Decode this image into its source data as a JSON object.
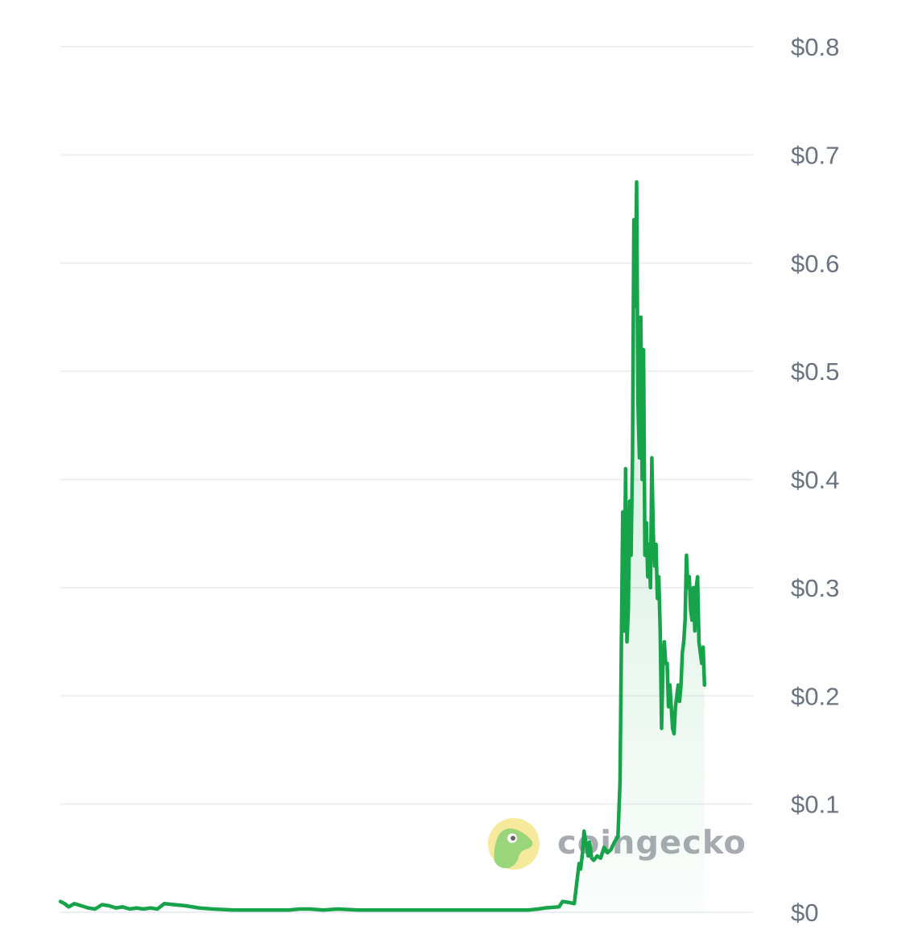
{
  "chart_data": {
    "type": "area",
    "y_tick_labels": [
      "$0",
      "$0.1",
      "$0.2",
      "$0.3",
      "$0.4",
      "$0.5",
      "$0.6",
      "$0.7",
      "$0.8"
    ],
    "y_ticks": [
      0,
      0.1,
      0.2,
      0.3,
      0.4,
      0.5,
      0.6,
      0.7,
      0.8
    ],
    "ylim": [
      0,
      0.8
    ],
    "xlim": [
      0,
      1
    ],
    "y_axis_position": "right",
    "grid": true,
    "line_color": "#16a34a",
    "fill_color": "#16a34a",
    "series": [
      {
        "points": [
          [
            0.0,
            0.01
          ],
          [
            0.006,
            0.008
          ],
          [
            0.012,
            0.005
          ],
          [
            0.02,
            0.008
          ],
          [
            0.03,
            0.006
          ],
          [
            0.04,
            0.004
          ],
          [
            0.05,
            0.003
          ],
          [
            0.06,
            0.007
          ],
          [
            0.07,
            0.006
          ],
          [
            0.08,
            0.004
          ],
          [
            0.09,
            0.005
          ],
          [
            0.1,
            0.003
          ],
          [
            0.11,
            0.004
          ],
          [
            0.12,
            0.003
          ],
          [
            0.13,
            0.004
          ],
          [
            0.14,
            0.003
          ],
          [
            0.15,
            0.008
          ],
          [
            0.165,
            0.007
          ],
          [
            0.18,
            0.006
          ],
          [
            0.2,
            0.004
          ],
          [
            0.22,
            0.003
          ],
          [
            0.25,
            0.002
          ],
          [
            0.3,
            0.002
          ],
          [
            0.33,
            0.002
          ],
          [
            0.345,
            0.003
          ],
          [
            0.36,
            0.003
          ],
          [
            0.38,
            0.002
          ],
          [
            0.4,
            0.003
          ],
          [
            0.43,
            0.002
          ],
          [
            0.46,
            0.002
          ],
          [
            0.5,
            0.002
          ],
          [
            0.54,
            0.002
          ],
          [
            0.56,
            0.002
          ],
          [
            0.6,
            0.002
          ],
          [
            0.62,
            0.002
          ],
          [
            0.65,
            0.002
          ],
          [
            0.675,
            0.002
          ],
          [
            0.69,
            0.003
          ],
          [
            0.7,
            0.004
          ],
          [
            0.72,
            0.005
          ],
          [
            0.725,
            0.01
          ],
          [
            0.735,
            0.009
          ],
          [
            0.742,
            0.008
          ],
          [
            0.746,
            0.03
          ],
          [
            0.749,
            0.045
          ],
          [
            0.751,
            0.04
          ],
          [
            0.754,
            0.055
          ],
          [
            0.756,
            0.075
          ],
          [
            0.76,
            0.06
          ],
          [
            0.762,
            0.052
          ],
          [
            0.764,
            0.065
          ],
          [
            0.767,
            0.05
          ],
          [
            0.77,
            0.048
          ],
          [
            0.775,
            0.052
          ],
          [
            0.78,
            0.05
          ],
          [
            0.785,
            0.06
          ],
          [
            0.79,
            0.055
          ],
          [
            0.795,
            0.058
          ],
          [
            0.8,
            0.065
          ],
          [
            0.805,
            0.07
          ],
          [
            0.808,
            0.12
          ],
          [
            0.81,
            0.25
          ],
          [
            0.812,
            0.37
          ],
          [
            0.814,
            0.26
          ],
          [
            0.816,
            0.41
          ],
          [
            0.818,
            0.25
          ],
          [
            0.82,
            0.28
          ],
          [
            0.822,
            0.38
          ],
          [
            0.824,
            0.33
          ],
          [
            0.826,
            0.42
          ],
          [
            0.828,
            0.64
          ],
          [
            0.83,
            0.56
          ],
          [
            0.832,
            0.675
          ],
          [
            0.834,
            0.47
          ],
          [
            0.836,
            0.42
          ],
          [
            0.838,
            0.55
          ],
          [
            0.84,
            0.4
          ],
          [
            0.842,
            0.52
          ],
          [
            0.844,
            0.33
          ],
          [
            0.846,
            0.36
          ],
          [
            0.848,
            0.31
          ],
          [
            0.85,
            0.34
          ],
          [
            0.852,
            0.3
          ],
          [
            0.854,
            0.42
          ],
          [
            0.856,
            0.35
          ],
          [
            0.858,
            0.32
          ],
          [
            0.86,
            0.34
          ],
          [
            0.862,
            0.29
          ],
          [
            0.864,
            0.31
          ],
          [
            0.866,
            0.26
          ],
          [
            0.868,
            0.17
          ],
          [
            0.87,
            0.23
          ],
          [
            0.872,
            0.25
          ],
          [
            0.874,
            0.23
          ],
          [
            0.876,
            0.23
          ],
          [
            0.878,
            0.19
          ],
          [
            0.88,
            0.21
          ],
          [
            0.882,
            0.19
          ],
          [
            0.884,
            0.17
          ],
          [
            0.886,
            0.165
          ],
          [
            0.888,
            0.19
          ],
          [
            0.89,
            0.2
          ],
          [
            0.892,
            0.21
          ],
          [
            0.894,
            0.195
          ],
          [
            0.896,
            0.21
          ],
          [
            0.898,
            0.24
          ],
          [
            0.9,
            0.25
          ],
          [
            0.902,
            0.27
          ],
          [
            0.904,
            0.33
          ],
          [
            0.906,
            0.3
          ],
          [
            0.908,
            0.31
          ],
          [
            0.91,
            0.28
          ],
          [
            0.912,
            0.27
          ],
          [
            0.914,
            0.3
          ],
          [
            0.916,
            0.26
          ],
          [
            0.918,
            0.3
          ],
          [
            0.92,
            0.31
          ],
          [
            0.922,
            0.25
          ],
          [
            0.924,
            0.24
          ],
          [
            0.926,
            0.23
          ],
          [
            0.928,
            0.245
          ],
          [
            0.93,
            0.21
          ]
        ]
      }
    ]
  },
  "watermark": {
    "text": "coingecko"
  }
}
